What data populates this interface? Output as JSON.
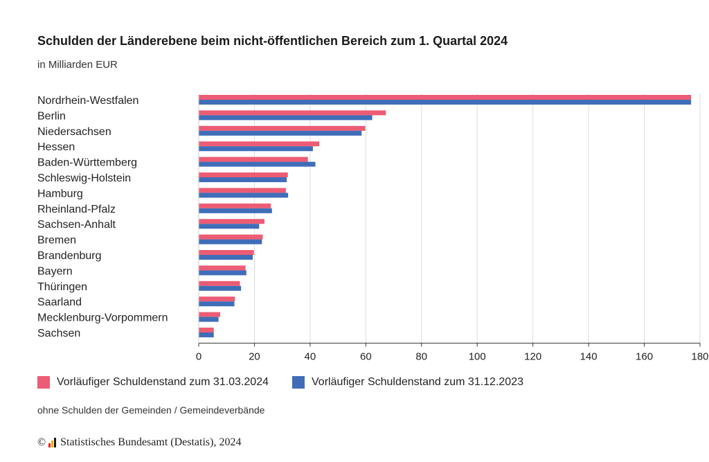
{
  "chart_data": {
    "type": "bar",
    "orientation": "horizontal",
    "title": "Schulden der Länderebene beim nicht-öffentlichen Bereich zum 1. Quartal 2024",
    "subtitle": "in Milliarden EUR",
    "categories": [
      "Nordrhein-Westfalen",
      "Berlin",
      "Niedersachsen",
      "Hessen",
      "Baden-Württemberg",
      "Schleswig-Holstein",
      "Hamburg",
      "Rheinland-Pfalz",
      "Sachsen-Anhalt",
      "Bremen",
      "Brandenburg",
      "Bayern",
      "Thüringen",
      "Saarland",
      "Mecklenburg-Vorpommern",
      "Sachsen"
    ],
    "series": [
      {
        "name": "Vorläufiger Schuldenstand zum 31.03.2024",
        "color": "#ec5c74",
        "values": [
          176.8,
          67.2,
          59.8,
          43.3,
          39.2,
          32.0,
          31.3,
          25.9,
          23.6,
          23.0,
          19.8,
          16.8,
          14.8,
          13.0,
          7.7,
          5.4
        ]
      },
      {
        "name": "Vorläufiger Schuldenstand zum 31.12.2023",
        "color": "#3f6db8",
        "values": [
          176.8,
          62.3,
          58.5,
          41.0,
          41.9,
          31.6,
          32.1,
          26.3,
          21.7,
          22.7,
          19.4,
          17.1,
          15.2,
          12.8,
          7.1,
          5.4
        ]
      }
    ],
    "xlim": [
      0,
      180
    ],
    "xticks": [
      "0",
      "20",
      "40",
      "60",
      "80",
      "100",
      "120",
      "140",
      "160",
      "180"
    ],
    "grid": true,
    "legend_position": "bottom-left"
  },
  "footnote": "ohne Schulden der Gemeinden / Gemeindeverbände",
  "source": {
    "copyright_symbol": "©",
    "text": "Statistisches Bundesamt (Destatis), 2024"
  },
  "logo_colors": [
    "#e2231a",
    "#f7a600",
    "#1a1a1a"
  ]
}
